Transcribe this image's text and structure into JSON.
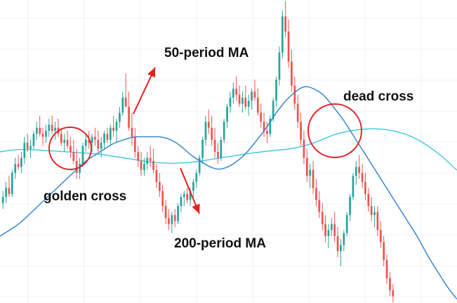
{
  "annotations": {
    "ma50": "50-period MA",
    "ma200": "200-period MA",
    "golden": "golden cross",
    "dead": "dead cross"
  },
  "colors": {
    "bull": "#26a69a",
    "bear": "#ef5350",
    "ma50": "#2f7fd0",
    "ma200": "#3fc7df",
    "circle": "#e3262b",
    "arrow": "#ee1c1c",
    "grid": "#eef1f4"
  },
  "chart_data": {
    "type": "candlestick",
    "title": "",
    "xlabel": "",
    "ylabel": "",
    "grid": true,
    "ylim": [
      0,
      100
    ],
    "series": [
      {
        "name": "50-period MA",
        "values": [
          22,
          24,
          26,
          29,
          32,
          35,
          38,
          41,
          44,
          47,
          49,
          51,
          53,
          54,
          55,
          55,
          55,
          55,
          54,
          52,
          49,
          47,
          45,
          44,
          45,
          47,
          50,
          54,
          58,
          63,
          67,
          70,
          72,
          71,
          69,
          65,
          61,
          56,
          51,
          46,
          41,
          36,
          31,
          26,
          21,
          15,
          10,
          5,
          1
        ]
      },
      {
        "name": "200-period MA",
        "values": [
          50,
          50.5,
          50.8,
          50.8,
          50.6,
          50.4,
          50.2,
          50,
          49.8,
          49.6,
          49.4,
          49,
          48.5,
          48,
          47.5,
          47,
          46.5,
          46.3,
          46.2,
          46.3,
          46.5,
          46.9,
          47.4,
          47.9,
          48.4,
          48.9,
          49.4,
          49.8,
          50.2,
          50.5,
          50.8,
          51.3,
          52,
          53,
          54.3,
          55.6,
          56.5,
          57.1,
          57.5,
          57.7,
          57.6,
          57.2,
          56.5,
          55.4,
          53.9,
          51.9,
          49.6,
          46.9,
          43.9
        ]
      }
    ],
    "candles": [
      {
        "o": 33,
        "h": 37,
        "l": 31,
        "c": 35
      },
      {
        "o": 35,
        "h": 40,
        "l": 33,
        "c": 38
      },
      {
        "o": 38,
        "h": 42,
        "l": 35,
        "c": 36
      },
      {
        "o": 36,
        "h": 44,
        "l": 35,
        "c": 43
      },
      {
        "o": 43,
        "h": 48,
        "l": 41,
        "c": 46
      },
      {
        "o": 46,
        "h": 49,
        "l": 44,
        "c": 45
      },
      {
        "o": 45,
        "h": 50,
        "l": 43,
        "c": 48
      },
      {
        "o": 48,
        "h": 55,
        "l": 46,
        "c": 53
      },
      {
        "o": 53,
        "h": 56,
        "l": 50,
        "c": 51
      },
      {
        "o": 51,
        "h": 54,
        "l": 48,
        "c": 52
      },
      {
        "o": 52,
        "h": 57,
        "l": 51,
        "c": 56
      },
      {
        "o": 56,
        "h": 60,
        "l": 54,
        "c": 58
      },
      {
        "o": 58,
        "h": 62,
        "l": 55,
        "c": 56
      },
      {
        "o": 56,
        "h": 58,
        "l": 52,
        "c": 55
      },
      {
        "o": 55,
        "h": 59,
        "l": 53,
        "c": 57
      },
      {
        "o": 57,
        "h": 61,
        "l": 55,
        "c": 59
      },
      {
        "o": 59,
        "h": 62,
        "l": 56,
        "c": 57
      },
      {
        "o": 57,
        "h": 60,
        "l": 54,
        "c": 58
      },
      {
        "o": 58,
        "h": 61,
        "l": 55,
        "c": 56
      },
      {
        "o": 56,
        "h": 58,
        "l": 52,
        "c": 53
      },
      {
        "o": 53,
        "h": 56,
        "l": 50,
        "c": 54
      },
      {
        "o": 54,
        "h": 57,
        "l": 51,
        "c": 52
      },
      {
        "o": 52,
        "h": 55,
        "l": 48,
        "c": 50
      },
      {
        "o": 50,
        "h": 54,
        "l": 46,
        "c": 47
      },
      {
        "o": 47,
        "h": 51,
        "l": 41,
        "c": 43
      },
      {
        "o": 43,
        "h": 48,
        "l": 41,
        "c": 46
      },
      {
        "o": 46,
        "h": 53,
        "l": 45,
        "c": 52
      },
      {
        "o": 52,
        "h": 56,
        "l": 50,
        "c": 54
      },
      {
        "o": 54,
        "h": 57,
        "l": 51,
        "c": 53
      },
      {
        "o": 53,
        "h": 56,
        "l": 50,
        "c": 55
      },
      {
        "o": 55,
        "h": 58,
        "l": 52,
        "c": 54
      },
      {
        "o": 54,
        "h": 57,
        "l": 50,
        "c": 51
      },
      {
        "o": 51,
        "h": 55,
        "l": 48,
        "c": 53
      },
      {
        "o": 53,
        "h": 57,
        "l": 51,
        "c": 56
      },
      {
        "o": 56,
        "h": 58,
        "l": 53,
        "c": 54
      },
      {
        "o": 54,
        "h": 59,
        "l": 52,
        "c": 58
      },
      {
        "o": 58,
        "h": 62,
        "l": 55,
        "c": 57
      },
      {
        "o": 57,
        "h": 61,
        "l": 53,
        "c": 60
      },
      {
        "o": 60,
        "h": 65,
        "l": 58,
        "c": 63
      },
      {
        "o": 63,
        "h": 70,
        "l": 62,
        "c": 68
      },
      {
        "o": 68,
        "h": 76,
        "l": 66,
        "c": 65
      },
      {
        "o": 65,
        "h": 70,
        "l": 57,
        "c": 58
      },
      {
        "o": 58,
        "h": 63,
        "l": 52,
        "c": 55
      },
      {
        "o": 55,
        "h": 58,
        "l": 48,
        "c": 50
      },
      {
        "o": 50,
        "h": 52,
        "l": 45,
        "c": 47
      },
      {
        "o": 47,
        "h": 50,
        "l": 42,
        "c": 44
      },
      {
        "o": 44,
        "h": 48,
        "l": 42,
        "c": 46
      },
      {
        "o": 46,
        "h": 50,
        "l": 44,
        "c": 48
      },
      {
        "o": 48,
        "h": 52,
        "l": 45,
        "c": 47
      },
      {
        "o": 47,
        "h": 51,
        "l": 43,
        "c": 44
      },
      {
        "o": 44,
        "h": 46,
        "l": 38,
        "c": 40
      },
      {
        "o": 40,
        "h": 43,
        "l": 35,
        "c": 37
      },
      {
        "o": 37,
        "h": 39,
        "l": 30,
        "c": 32
      },
      {
        "o": 32,
        "h": 34,
        "l": 26,
        "c": 28
      },
      {
        "o": 28,
        "h": 31,
        "l": 24,
        "c": 26
      },
      {
        "o": 26,
        "h": 30,
        "l": 23,
        "c": 29
      },
      {
        "o": 29,
        "h": 31,
        "l": 25,
        "c": 27
      },
      {
        "o": 27,
        "h": 33,
        "l": 26,
        "c": 32
      },
      {
        "o": 32,
        "h": 36,
        "l": 30,
        "c": 35
      },
      {
        "o": 35,
        "h": 37,
        "l": 32,
        "c": 36
      },
      {
        "o": 36,
        "h": 38,
        "l": 33,
        "c": 34
      },
      {
        "o": 34,
        "h": 38,
        "l": 32,
        "c": 37
      },
      {
        "o": 37,
        "h": 41,
        "l": 35,
        "c": 40
      },
      {
        "o": 40,
        "h": 44,
        "l": 38,
        "c": 43
      },
      {
        "o": 43,
        "h": 49,
        "l": 42,
        "c": 48
      },
      {
        "o": 48,
        "h": 55,
        "l": 46,
        "c": 54
      },
      {
        "o": 54,
        "h": 62,
        "l": 52,
        "c": 60
      },
      {
        "o": 60,
        "h": 64,
        "l": 56,
        "c": 58
      },
      {
        "o": 58,
        "h": 62,
        "l": 52,
        "c": 54
      },
      {
        "o": 54,
        "h": 58,
        "l": 48,
        "c": 50
      },
      {
        "o": 50,
        "h": 53,
        "l": 46,
        "c": 48
      },
      {
        "o": 48,
        "h": 55,
        "l": 47,
        "c": 54
      },
      {
        "o": 54,
        "h": 61,
        "l": 53,
        "c": 60
      },
      {
        "o": 60,
        "h": 66,
        "l": 58,
        "c": 65
      },
      {
        "o": 65,
        "h": 70,
        "l": 63,
        "c": 68
      },
      {
        "o": 68,
        "h": 73,
        "l": 66,
        "c": 71
      },
      {
        "o": 71,
        "h": 75,
        "l": 67,
        "c": 69
      },
      {
        "o": 69,
        "h": 72,
        "l": 65,
        "c": 66
      },
      {
        "o": 66,
        "h": 70,
        "l": 63,
        "c": 68
      },
      {
        "o": 68,
        "h": 72,
        "l": 64,
        "c": 65
      },
      {
        "o": 65,
        "h": 69,
        "l": 62,
        "c": 67
      },
      {
        "o": 67,
        "h": 71,
        "l": 64,
        "c": 70
      },
      {
        "o": 70,
        "h": 74,
        "l": 67,
        "c": 68
      },
      {
        "o": 68,
        "h": 71,
        "l": 62,
        "c": 63
      },
      {
        "o": 63,
        "h": 66,
        "l": 58,
        "c": 60
      },
      {
        "o": 60,
        "h": 63,
        "l": 55,
        "c": 57
      },
      {
        "o": 57,
        "h": 60,
        "l": 53,
        "c": 56
      },
      {
        "o": 56,
        "h": 62,
        "l": 55,
        "c": 61
      },
      {
        "o": 61,
        "h": 68,
        "l": 60,
        "c": 67
      },
      {
        "o": 67,
        "h": 75,
        "l": 65,
        "c": 74
      },
      {
        "o": 74,
        "h": 85,
        "l": 72,
        "c": 83
      },
      {
        "o": 83,
        "h": 97,
        "l": 81,
        "c": 95
      },
      {
        "o": 95,
        "h": 100,
        "l": 88,
        "c": 90
      },
      {
        "o": 90,
        "h": 94,
        "l": 78,
        "c": 80
      },
      {
        "o": 80,
        "h": 84,
        "l": 70,
        "c": 72
      },
      {
        "o": 72,
        "h": 75,
        "l": 64,
        "c": 66
      },
      {
        "o": 66,
        "h": 69,
        "l": 58,
        "c": 60
      },
      {
        "o": 60,
        "h": 63,
        "l": 52,
        "c": 54
      },
      {
        "o": 54,
        "h": 57,
        "l": 46,
        "c": 48
      },
      {
        "o": 48,
        "h": 51,
        "l": 40,
        "c": 42
      },
      {
        "o": 42,
        "h": 46,
        "l": 38,
        "c": 44
      },
      {
        "o": 44,
        "h": 47,
        "l": 36,
        "c": 38
      },
      {
        "o": 38,
        "h": 41,
        "l": 32,
        "c": 34
      },
      {
        "o": 34,
        "h": 37,
        "l": 28,
        "c": 30
      },
      {
        "o": 30,
        "h": 33,
        "l": 24,
        "c": 26
      },
      {
        "o": 26,
        "h": 29,
        "l": 20,
        "c": 22
      },
      {
        "o": 22,
        "h": 26,
        "l": 18,
        "c": 24
      },
      {
        "o": 24,
        "h": 28,
        "l": 22,
        "c": 26
      },
      {
        "o": 26,
        "h": 30,
        "l": 20,
        "c": 22
      },
      {
        "o": 22,
        "h": 25,
        "l": 15,
        "c": 17
      },
      {
        "o": 17,
        "h": 21,
        "l": 12,
        "c": 19
      },
      {
        "o": 19,
        "h": 24,
        "l": 17,
        "c": 23
      },
      {
        "o": 23,
        "h": 30,
        "l": 22,
        "c": 29
      },
      {
        "o": 29,
        "h": 36,
        "l": 27,
        "c": 35
      },
      {
        "o": 35,
        "h": 43,
        "l": 34,
        "c": 42
      },
      {
        "o": 42,
        "h": 47,
        "l": 39,
        "c": 45
      },
      {
        "o": 45,
        "h": 49,
        "l": 41,
        "c": 43
      },
      {
        "o": 43,
        "h": 46,
        "l": 38,
        "c": 40
      },
      {
        "o": 40,
        "h": 43,
        "l": 34,
        "c": 36
      },
      {
        "o": 36,
        "h": 38,
        "l": 30,
        "c": 32
      },
      {
        "o": 32,
        "h": 35,
        "l": 27,
        "c": 29
      },
      {
        "o": 29,
        "h": 32,
        "l": 25,
        "c": 30
      },
      {
        "o": 30,
        "h": 32,
        "l": 22,
        "c": 24
      },
      {
        "o": 24,
        "h": 27,
        "l": 18,
        "c": 20
      },
      {
        "o": 20,
        "h": 22,
        "l": 12,
        "c": 14
      },
      {
        "o": 14,
        "h": 16,
        "l": 6,
        "c": 8
      },
      {
        "o": 8,
        "h": 10,
        "l": 2,
        "c": 4
      },
      {
        "o": 4,
        "h": 6,
        "l": 0,
        "c": 2
      }
    ]
  }
}
